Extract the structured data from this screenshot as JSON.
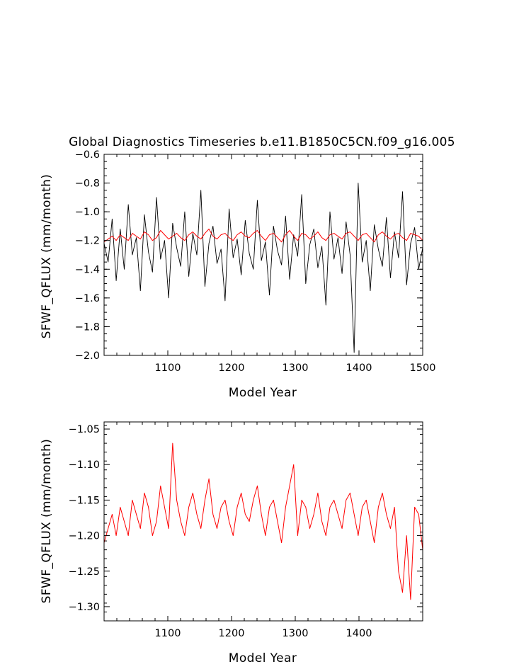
{
  "chart_data": [
    {
      "type": "line",
      "title": "Global Diagnostics Timeseries b.e11.B1850C5CN.f09_g16.005",
      "xlabel": "Model Year",
      "ylabel": "SFWF_QFLUX (mm/month)",
      "xlim": [
        1000,
        1500
      ],
      "ylim": [
        -2.0,
        -0.6
      ],
      "x_ticks": [
        1100,
        1200,
        1300,
        1400,
        1500
      ],
      "y_ticks": [
        -0.6,
        -0.8,
        -1.0,
        -1.2,
        -1.4,
        -1.6,
        -1.8,
        -2.0
      ],
      "x_tick_labels": [
        "1100",
        "1200",
        "1300",
        "1400",
        "1500"
      ],
      "y_tick_labels": [
        "−0.6",
        "−0.8",
        "−1.0",
        "−1.2",
        "−1.4",
        "−1.6",
        "−1.8",
        "−2.0"
      ],
      "grid": false,
      "series_colors": [
        "#000000",
        "#ff0000"
      ],
      "series": [
        {
          "values": [
            -1.22,
            -1.35,
            -1.05,
            -1.48,
            -1.12,
            -1.4,
            -0.95,
            -1.3,
            -1.18,
            -1.55,
            -1.02,
            -1.28,
            -1.42,
            -0.9,
            -1.33,
            -1.2,
            -1.6,
            -1.08,
            -1.25,
            -1.38,
            -1.0,
            -1.45,
            -1.15,
            -1.3,
            -0.85,
            -1.52,
            -1.22,
            -1.1,
            -1.36,
            -1.26,
            -1.62,
            -0.98,
            -1.32,
            -1.19,
            -1.44,
            -1.06,
            -1.29,
            -1.4,
            -0.92,
            -1.34,
            -1.21,
            -1.58,
            -1.1,
            -1.27,
            -1.37,
            -1.03,
            -1.47,
            -1.16,
            -1.31,
            -0.88,
            -1.5,
            -1.23,
            -1.12,
            -1.39,
            -1.24,
            -1.65,
            -1.0,
            -1.33,
            -1.18,
            -1.43,
            -1.07,
            -1.3,
            -1.98,
            -0.8,
            -1.35,
            -1.2,
            -1.55,
            -1.09,
            -1.26,
            -1.38,
            -1.04,
            -1.46,
            -1.14,
            -1.32,
            -0.86,
            -1.51,
            -1.22,
            -1.11,
            -1.4,
            -1.25
          ]
        },
        {
          "values": [
            -1.21,
            -1.19,
            -1.17,
            -1.2,
            -1.16,
            -1.18,
            -1.2,
            -1.15,
            -1.17,
            -1.19,
            -1.14,
            -1.16,
            -1.2,
            -1.18,
            -1.13,
            -1.16,
            -1.19,
            -1.17,
            -1.15,
            -1.18,
            -1.2,
            -1.16,
            -1.14,
            -1.17,
            -1.19,
            -1.15,
            -1.12,
            -1.17,
            -1.19,
            -1.16,
            -1.15,
            -1.18,
            -1.2,
            -1.16,
            -1.14,
            -1.17,
            -1.18,
            -1.15,
            -1.13,
            -1.17,
            -1.2,
            -1.16,
            -1.15,
            -1.18,
            -1.21,
            -1.16,
            -1.13,
            -1.17,
            -1.2,
            -1.15,
            -1.16,
            -1.19,
            -1.17,
            -1.14,
            -1.18,
            -1.2,
            -1.16,
            -1.15,
            -1.17,
            -1.19,
            -1.15,
            -1.14,
            -1.17,
            -1.2,
            -1.16,
            -1.15,
            -1.18,
            -1.21,
            -1.16,
            -1.14,
            -1.17,
            -1.19,
            -1.16,
            -1.15,
            -1.18,
            -1.2,
            -1.15,
            -1.16,
            -1.17,
            -1.2
          ]
        }
      ]
    },
    {
      "type": "line",
      "title": "",
      "xlabel": "Model Year",
      "ylabel": "SFWF_QFLUX (mm/month)",
      "xlim": [
        1000,
        1500
      ],
      "ylim": [
        -1.32,
        -1.04
      ],
      "x_ticks": [
        1100,
        1200,
        1300,
        1400
      ],
      "y_ticks": [
        -1.05,
        -1.1,
        -1.15,
        -1.2,
        -1.25,
        -1.3
      ],
      "x_tick_labels": [
        "1100",
        "1200",
        "1300",
        "1400"
      ],
      "y_tick_labels": [
        "−1.05",
        "−1.10",
        "−1.15",
        "−1.20",
        "−1.25",
        "−1.30"
      ],
      "grid": false,
      "series_colors": [
        "#ff0000"
      ],
      "series": [
        {
          "values": [
            -1.21,
            -1.19,
            -1.17,
            -1.2,
            -1.16,
            -1.18,
            -1.2,
            -1.15,
            -1.17,
            -1.19,
            -1.14,
            -1.16,
            -1.2,
            -1.18,
            -1.13,
            -1.16,
            -1.19,
            -1.07,
            -1.15,
            -1.18,
            -1.2,
            -1.16,
            -1.14,
            -1.17,
            -1.19,
            -1.15,
            -1.12,
            -1.17,
            -1.19,
            -1.16,
            -1.15,
            -1.18,
            -1.2,
            -1.16,
            -1.14,
            -1.17,
            -1.18,
            -1.15,
            -1.13,
            -1.17,
            -1.2,
            -1.16,
            -1.15,
            -1.18,
            -1.21,
            -1.16,
            -1.13,
            -1.1,
            -1.2,
            -1.15,
            -1.16,
            -1.19,
            -1.17,
            -1.14,
            -1.18,
            -1.2,
            -1.16,
            -1.15,
            -1.17,
            -1.19,
            -1.15,
            -1.14,
            -1.17,
            -1.2,
            -1.16,
            -1.15,
            -1.18,
            -1.21,
            -1.16,
            -1.14,
            -1.17,
            -1.19,
            -1.16,
            -1.25,
            -1.28,
            -1.2,
            -1.29,
            -1.16,
            -1.17,
            -1.22
          ]
        }
      ]
    }
  ]
}
